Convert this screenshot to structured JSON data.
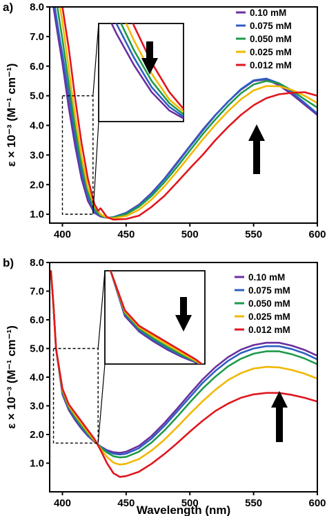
{
  "panels": [
    {
      "label": "a)",
      "inset_arrow": "down",
      "main_arrow": "up"
    },
    {
      "label": "b)",
      "inset_arrow": "down",
      "main_arrow": "up"
    }
  ],
  "colors": {
    "0.10 mM": "#6a2fa0",
    "0.075 mM": "#2f5fc2",
    "0.050 mM": "#1e9a4a",
    "0.025 mM": "#f1b800",
    "0.012 mM": "#e0161e"
  },
  "chart_data": [
    {
      "type": "line",
      "title": "",
      "panel": "a)",
      "xlabel": "",
      "ylabel": "ε × 10⁻³ (M⁻¹ cm⁻¹)",
      "xlim": [
        390,
        600
      ],
      "ylim": [
        0.7,
        8.0
      ],
      "xticks": [
        400,
        450,
        500,
        550,
        600
      ],
      "yticks": [
        1.0,
        2.0,
        3.0,
        4.0,
        5.0,
        6.0,
        7.0,
        8.0
      ],
      "grid": false,
      "legend_position": "top-right",
      "inset_region": {
        "x": [
          400,
          424
        ],
        "y": [
          1.0,
          5.0
        ]
      },
      "series": [
        {
          "name": "0.10 mM",
          "x": [
            393,
            397,
            400,
            405,
            410,
            415,
            420,
            425,
            430,
            435,
            440,
            450,
            460,
            470,
            480,
            490,
            500,
            510,
            520,
            530,
            540,
            550,
            560,
            570,
            580,
            590,
            600
          ],
          "y": [
            8.0,
            6.9,
            6.1,
            4.6,
            3.3,
            2.2,
            1.45,
            1.05,
            0.92,
            0.88,
            0.9,
            1.05,
            1.32,
            1.72,
            2.2,
            2.75,
            3.3,
            3.85,
            4.35,
            4.8,
            5.2,
            5.5,
            5.55,
            5.35,
            5.05,
            4.7,
            4.35
          ]
        },
        {
          "name": "0.075 mM",
          "x": [
            394,
            398,
            400,
            405,
            410,
            415,
            420,
            425,
            430,
            435,
            440,
            450,
            460,
            470,
            480,
            490,
            500,
            510,
            520,
            530,
            540,
            550,
            560,
            570,
            580,
            590,
            600
          ],
          "y": [
            8.0,
            6.9,
            6.4,
            5.0,
            3.6,
            2.4,
            1.6,
            1.1,
            0.94,
            0.88,
            0.9,
            1.04,
            1.3,
            1.7,
            2.18,
            2.72,
            3.28,
            3.82,
            4.34,
            4.8,
            5.22,
            5.52,
            5.58,
            5.42,
            5.12,
            4.76,
            4.4
          ]
        },
        {
          "name": "0.050 mM",
          "x": [
            396,
            400,
            405,
            410,
            415,
            420,
            425,
            430,
            435,
            440,
            450,
            460,
            470,
            480,
            490,
            500,
            510,
            520,
            530,
            540,
            550,
            560,
            570,
            580,
            590,
            600
          ],
          "y": [
            8.0,
            6.9,
            5.4,
            3.9,
            2.65,
            1.75,
            1.18,
            0.96,
            0.88,
            0.89,
            1.0,
            1.25,
            1.62,
            2.08,
            2.6,
            3.15,
            3.7,
            4.2,
            4.67,
            5.08,
            5.38,
            5.5,
            5.42,
            5.18,
            4.88,
            4.6
          ]
        },
        {
          "name": "0.025 mM",
          "x": [
            398,
            400,
            405,
            410,
            415,
            420,
            425,
            430,
            435,
            440,
            450,
            460,
            470,
            480,
            490,
            500,
            510,
            520,
            530,
            540,
            550,
            560,
            570,
            580,
            590,
            600
          ],
          "y": [
            8.0,
            7.5,
            5.9,
            4.3,
            2.95,
            1.9,
            1.28,
            1.0,
            0.88,
            0.86,
            0.94,
            1.15,
            1.5,
            1.94,
            2.45,
            2.98,
            3.52,
            4.02,
            4.48,
            4.88,
            5.18,
            5.33,
            5.32,
            5.2,
            5.0,
            4.75
          ]
        },
        {
          "name": "0.012 mM",
          "x": [
            400,
            405,
            410,
            415,
            420,
            425,
            428,
            430,
            435,
            440,
            450,
            460,
            470,
            480,
            490,
            500,
            510,
            520,
            530,
            540,
            550,
            560,
            570,
            580,
            590,
            600
          ],
          "y": [
            8.0,
            6.6,
            4.9,
            3.4,
            2.2,
            1.35,
            1.12,
            1.2,
            0.9,
            0.82,
            0.84,
            0.95,
            1.25,
            1.62,
            2.08,
            2.55,
            3.0,
            3.5,
            3.95,
            4.35,
            4.68,
            4.92,
            5.05,
            5.1,
            5.12,
            5.0
          ]
        }
      ]
    },
    {
      "type": "line",
      "title": "",
      "panel": "b)",
      "xlabel": "Wavelength (nm)",
      "ylabel": "ε × 10⁻³ (M⁻¹ cm⁻¹)",
      "xlim": [
        390,
        600
      ],
      "ylim": [
        0.0,
        8.0
      ],
      "xticks": [
        400,
        450,
        500,
        550,
        600
      ],
      "yticks": [
        1.0,
        2.0,
        3.0,
        4.0,
        5.0,
        6.0,
        7.0,
        8.0
      ],
      "grid": false,
      "legend_position": "top-right",
      "inset_region": {
        "x": [
          393,
          428
        ],
        "y": [
          1.7,
          5.0
        ]
      },
      "series": [
        {
          "name": "0.10 mM",
          "x": [
            391,
            393,
            395,
            400,
            405,
            410,
            415,
            420,
            425,
            430,
            435,
            440,
            445,
            450,
            460,
            470,
            480,
            490,
            500,
            510,
            520,
            530,
            540,
            550,
            560,
            570,
            580,
            590,
            600
          ],
          "y": [
            7.7,
            6.5,
            5.0,
            3.4,
            2.85,
            2.5,
            2.2,
            1.95,
            1.75,
            1.58,
            1.45,
            1.38,
            1.36,
            1.4,
            1.6,
            1.95,
            2.4,
            2.9,
            3.42,
            3.92,
            4.35,
            4.7,
            4.96,
            5.12,
            5.2,
            5.2,
            5.1,
            4.95,
            4.75
          ]
        },
        {
          "name": "0.075 mM",
          "x": [
            391,
            393,
            395,
            400,
            405,
            410,
            415,
            420,
            425,
            430,
            435,
            440,
            445,
            450,
            460,
            470,
            480,
            490,
            500,
            510,
            520,
            530,
            540,
            550,
            560,
            570,
            580,
            590,
            600
          ],
          "y": [
            7.7,
            6.5,
            5.0,
            3.45,
            2.9,
            2.55,
            2.25,
            1.98,
            1.77,
            1.57,
            1.42,
            1.33,
            1.3,
            1.33,
            1.52,
            1.86,
            2.3,
            2.8,
            3.3,
            3.8,
            4.22,
            4.57,
            4.84,
            5.0,
            5.08,
            5.08,
            4.98,
            4.83,
            4.62
          ]
        },
        {
          "name": "0.050 mM",
          "x": [
            391,
            393,
            395,
            400,
            405,
            410,
            415,
            420,
            425,
            430,
            435,
            440,
            445,
            450,
            460,
            470,
            480,
            490,
            500,
            510,
            520,
            530,
            540,
            550,
            560,
            570,
            580,
            590,
            600
          ],
          "y": [
            7.7,
            6.5,
            5.0,
            3.5,
            2.95,
            2.6,
            2.3,
            2.02,
            1.78,
            1.55,
            1.37,
            1.24,
            1.2,
            1.22,
            1.4,
            1.72,
            2.14,
            2.62,
            3.12,
            3.6,
            4.02,
            4.38,
            4.64,
            4.82,
            4.9,
            4.9,
            4.8,
            4.65,
            4.45
          ]
        },
        {
          "name": "0.025 mM",
          "x": [
            391,
            393,
            395,
            400,
            405,
            410,
            415,
            420,
            425,
            430,
            435,
            440,
            445,
            450,
            460,
            470,
            480,
            490,
            500,
            510,
            520,
            530,
            540,
            550,
            560,
            570,
            580,
            590,
            600
          ],
          "y": [
            7.7,
            6.5,
            5.0,
            3.55,
            3.0,
            2.68,
            2.38,
            2.08,
            1.8,
            1.5,
            1.22,
            1.02,
            0.95,
            0.98,
            1.14,
            1.44,
            1.82,
            2.26,
            2.72,
            3.16,
            3.56,
            3.9,
            4.14,
            4.3,
            4.36,
            4.34,
            4.25,
            4.12,
            3.95
          ]
        },
        {
          "name": "0.012 mM",
          "x": [
            391,
            393,
            395,
            400,
            405,
            410,
            415,
            420,
            425,
            430,
            435,
            440,
            445,
            450,
            460,
            470,
            480,
            490,
            500,
            510,
            520,
            530,
            540,
            550,
            560,
            570,
            580,
            590,
            600
          ],
          "y": [
            7.7,
            6.5,
            5.0,
            3.6,
            3.05,
            2.75,
            2.45,
            2.15,
            1.85,
            1.45,
            1.0,
            0.65,
            0.52,
            0.55,
            0.7,
            0.98,
            1.32,
            1.7,
            2.1,
            2.48,
            2.82,
            3.08,
            3.28,
            3.4,
            3.45,
            3.45,
            3.38,
            3.28,
            3.15
          ]
        }
      ]
    }
  ]
}
